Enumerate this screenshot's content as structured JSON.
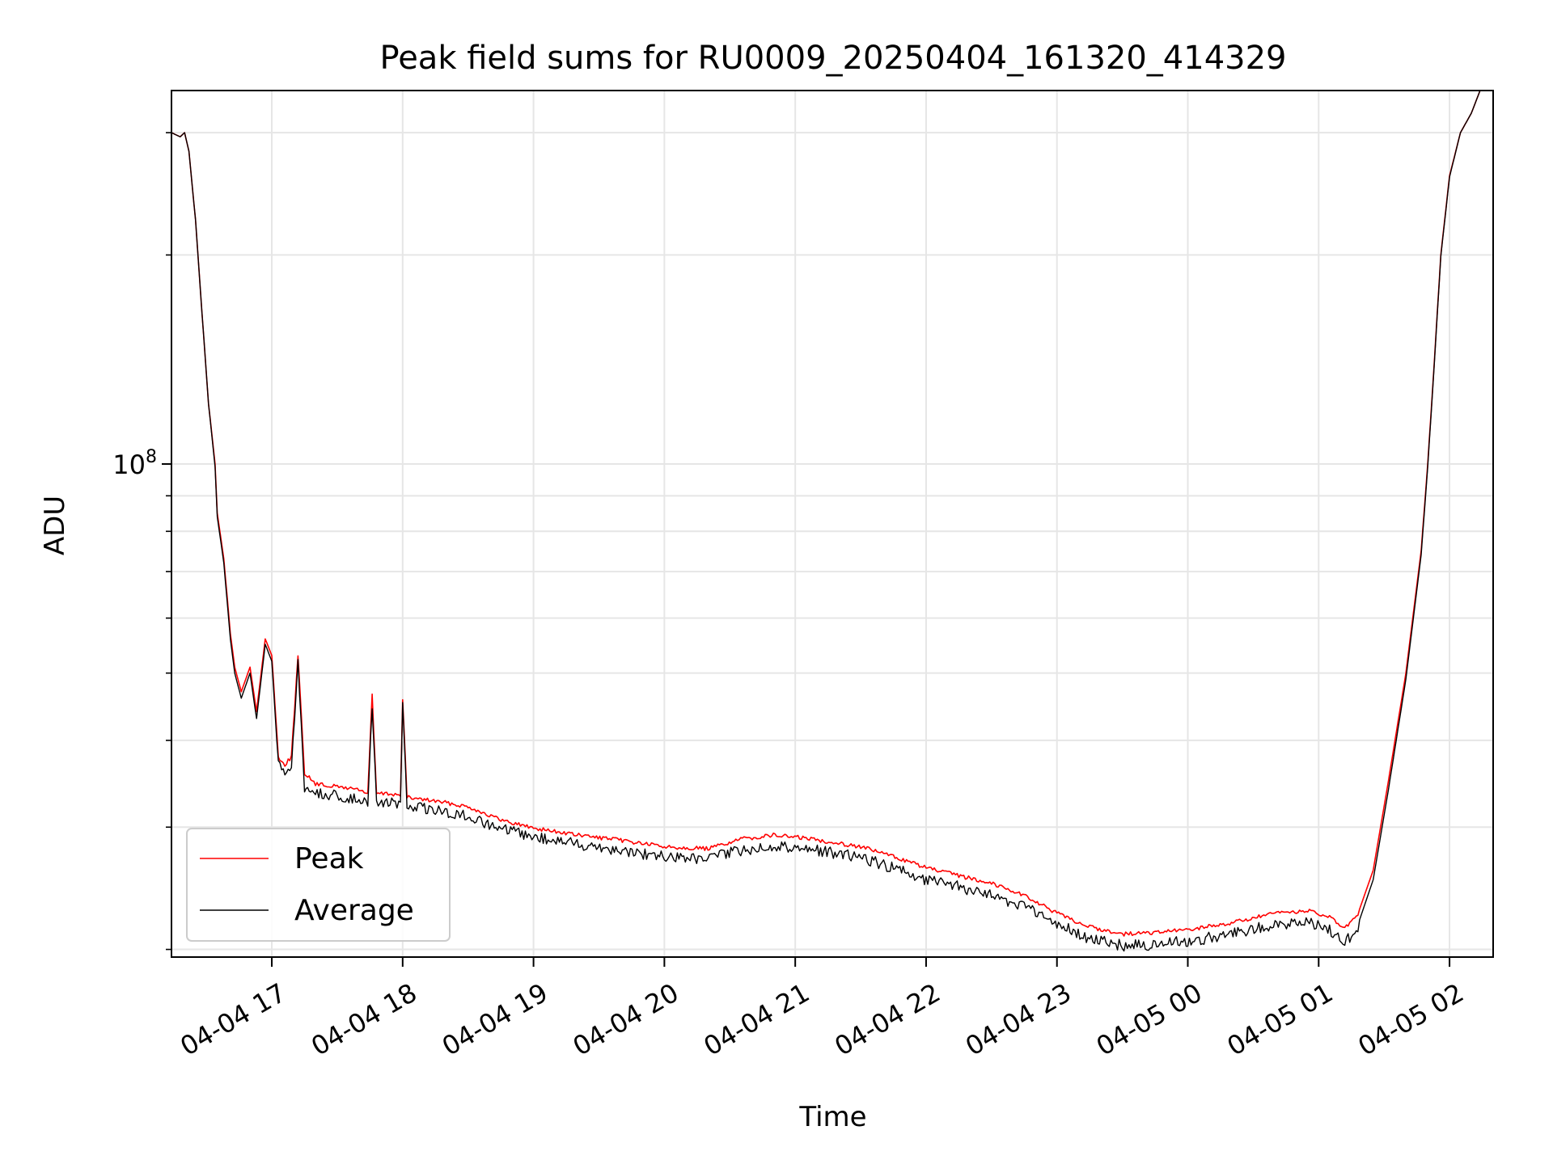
{
  "chart_data": {
    "type": "line",
    "title": "Peak field sums for RU0009_20250404_161320_414329",
    "xlabel": "Time",
    "ylabel": "ADU",
    "yscale": "log",
    "ylim": [
      19500000,
      345000000
    ],
    "xlim": [
      "2025-04-04 16:14",
      "2025-04-05 02:20"
    ],
    "x_ticks": [
      {
        "t": "2025-04-04 17:00",
        "label": "04-04 17"
      },
      {
        "t": "2025-04-04 18:00",
        "label": "04-04 18"
      },
      {
        "t": "2025-04-04 19:00",
        "label": "04-04 19"
      },
      {
        "t": "2025-04-04 20:00",
        "label": "04-04 20"
      },
      {
        "t": "2025-04-04 21:00",
        "label": "04-04 21"
      },
      {
        "t": "2025-04-04 22:00",
        "label": "04-04 22"
      },
      {
        "t": "2025-04-04 23:00",
        "label": "04-04 23"
      },
      {
        "t": "2025-04-05 00:00",
        "label": "04-05 00"
      },
      {
        "t": "2025-04-05 01:00",
        "label": "04-05 01"
      },
      {
        "t": "2025-04-05 02:00",
        "label": "04-05 02"
      }
    ],
    "y_ticks": [
      {
        "value": 100000000,
        "base": "10",
        "exp": "8"
      }
    ],
    "y_minor_ticks": [
      20000000,
      30000000,
      40000000,
      50000000,
      60000000,
      70000000,
      80000000,
      90000000,
      200000000,
      300000000
    ],
    "grid": true,
    "legend": {
      "position": "lower-left",
      "entries": [
        "Peak",
        "Average"
      ]
    },
    "series": [
      {
        "name": "Peak",
        "color": "#ff0000",
        "points": [
          [
            "2025-04-04 16:14",
            300000000
          ],
          [
            "2025-04-04 16:18",
            296000000
          ],
          [
            "2025-04-04 16:20",
            300000000
          ],
          [
            "2025-04-04 16:22",
            282000000
          ],
          [
            "2025-04-04 16:25",
            225000000
          ],
          [
            "2025-04-04 16:28",
            165000000
          ],
          [
            "2025-04-04 16:31",
            122000000
          ],
          [
            "2025-04-04 16:34",
            100000000
          ],
          [
            "2025-04-04 16:35",
            85000000
          ],
          [
            "2025-04-04 16:38",
            73000000
          ],
          [
            "2025-04-04 16:41",
            57000000
          ],
          [
            "2025-04-04 16:43",
            51000000
          ],
          [
            "2025-04-04 16:46",
            47000000
          ],
          [
            "2025-04-04 16:50",
            51000000
          ],
          [
            "2025-04-04 16:53",
            44000000
          ],
          [
            "2025-04-04 16:57",
            56000000
          ],
          [
            "2025-04-04 17:00",
            53000000
          ],
          [
            "2025-04-04 17:03",
            38000000
          ],
          [
            "2025-04-04 17:06",
            37000000
          ],
          [
            "2025-04-04 17:09",
            38000000
          ],
          [
            "2025-04-04 17:12",
            53000000
          ],
          [
            "2025-04-04 17:15",
            36000000
          ],
          [
            "2025-04-04 17:20",
            34700000
          ],
          [
            "2025-04-04 17:30",
            34400000
          ],
          [
            "2025-04-04 17:40",
            34100000
          ],
          [
            "2025-04-04 17:44",
            33600000
          ],
          [
            "2025-04-04 17:46",
            46500000
          ],
          [
            "2025-04-04 17:48",
            33600000
          ],
          [
            "2025-04-04 17:55",
            33600000
          ],
          [
            "2025-04-04 17:59",
            33400000
          ],
          [
            "2025-04-04 18:00",
            46000000
          ],
          [
            "2025-04-04 18:02",
            33200000
          ],
          [
            "2025-04-04 18:15",
            32800000
          ],
          [
            "2025-04-04 18:30",
            32200000
          ],
          [
            "2025-04-04 18:45",
            30800000
          ],
          [
            "2025-04-04 19:00",
            30000000
          ],
          [
            "2025-04-04 19:20",
            29300000
          ],
          [
            "2025-04-04 19:40",
            28800000
          ],
          [
            "2025-04-04 20:00",
            28200000
          ],
          [
            "2025-04-04 20:20",
            28000000
          ],
          [
            "2025-04-04 20:35",
            28900000
          ],
          [
            "2025-04-04 20:50",
            29300000
          ],
          [
            "2025-04-04 21:05",
            29000000
          ],
          [
            "2025-04-04 21:30",
            28200000
          ],
          [
            "2025-04-04 21:45",
            27300000
          ],
          [
            "2025-04-04 22:00",
            26300000
          ],
          [
            "2025-04-04 22:15",
            25600000
          ],
          [
            "2025-04-04 22:30",
            25000000
          ],
          [
            "2025-04-04 22:45",
            24000000
          ],
          [
            "2025-04-04 23:00",
            22600000
          ],
          [
            "2025-04-04 23:15",
            21600000
          ],
          [
            "2025-04-04 23:30",
            21100000
          ],
          [
            "2025-04-04 23:45",
            21200000
          ],
          [
            "2025-04-05 00:00",
            21400000
          ],
          [
            "2025-04-05 00:20",
            21900000
          ],
          [
            "2025-04-05 00:40",
            22600000
          ],
          [
            "2025-04-05 00:55",
            22800000
          ],
          [
            "2025-04-05 01:05",
            22300000
          ],
          [
            "2025-04-05 01:12",
            21500000
          ],
          [
            "2025-04-05 01:18",
            22500000
          ],
          [
            "2025-04-05 01:25",
            26000000
          ],
          [
            "2025-04-05 01:32",
            35000000
          ],
          [
            "2025-04-05 01:40",
            50000000
          ],
          [
            "2025-04-05 01:47",
            75000000
          ],
          [
            "2025-04-05 01:50",
            100000000
          ],
          [
            "2025-04-05 01:53",
            140000000
          ],
          [
            "2025-04-05 01:56",
            200000000
          ],
          [
            "2025-04-05 02:00",
            260000000
          ],
          [
            "2025-04-05 02:05",
            300000000
          ],
          [
            "2025-04-05 02:10",
            320000000
          ],
          [
            "2025-04-05 02:14",
            345000000
          ]
        ]
      },
      {
        "name": "Average",
        "color": "#000000",
        "points": [
          [
            "2025-04-04 16:14",
            300000000
          ],
          [
            "2025-04-04 16:18",
            296000000
          ],
          [
            "2025-04-04 16:20",
            300000000
          ],
          [
            "2025-04-04 16:22",
            282000000
          ],
          [
            "2025-04-04 16:25",
            225000000
          ],
          [
            "2025-04-04 16:28",
            165000000
          ],
          [
            "2025-04-04 16:31",
            122000000
          ],
          [
            "2025-04-04 16:34",
            99000000
          ],
          [
            "2025-04-04 16:35",
            84000000
          ],
          [
            "2025-04-04 16:38",
            72000000
          ],
          [
            "2025-04-04 16:41",
            56000000
          ],
          [
            "2025-04-04 16:43",
            50000000
          ],
          [
            "2025-04-04 16:46",
            46000000
          ],
          [
            "2025-04-04 16:50",
            50000000
          ],
          [
            "2025-04-04 16:53",
            43000000
          ],
          [
            "2025-04-04 16:57",
            55000000
          ],
          [
            "2025-04-04 17:00",
            52000000
          ],
          [
            "2025-04-04 17:03",
            37000000
          ],
          [
            "2025-04-04 17:06",
            36000000
          ],
          [
            "2025-04-04 17:09",
            37000000
          ],
          [
            "2025-04-04 17:12",
            52000000
          ],
          [
            "2025-04-04 17:15",
            34500000
          ],
          [
            "2025-04-04 17:20",
            33800000
          ],
          [
            "2025-04-04 17:30",
            33500000
          ],
          [
            "2025-04-04 17:40",
            33200000
          ],
          [
            "2025-04-04 17:44",
            32800000
          ],
          [
            "2025-04-04 17:46",
            45500000
          ],
          [
            "2025-04-04 17:48",
            32600000
          ],
          [
            "2025-04-04 17:55",
            32800000
          ],
          [
            "2025-04-04 17:59",
            32600000
          ],
          [
            "2025-04-04 18:00",
            45000000
          ],
          [
            "2025-04-04 18:02",
            32400000
          ],
          [
            "2025-04-04 18:15",
            32000000
          ],
          [
            "2025-04-04 18:30",
            31300000
          ],
          [
            "2025-04-04 18:45",
            30000000
          ],
          [
            "2025-04-04 19:00",
            29300000
          ],
          [
            "2025-04-04 19:20",
            28600000
          ],
          [
            "2025-04-04 19:40",
            28000000
          ],
          [
            "2025-04-04 20:00",
            27400000
          ],
          [
            "2025-04-04 20:20",
            27200000
          ],
          [
            "2025-04-04 20:35",
            28000000
          ],
          [
            "2025-04-04 20:50",
            28400000
          ],
          [
            "2025-04-04 21:05",
            28200000
          ],
          [
            "2025-04-04 21:30",
            27300000
          ],
          [
            "2025-04-04 21:45",
            26400000
          ],
          [
            "2025-04-04 22:00",
            25400000
          ],
          [
            "2025-04-04 22:15",
            24800000
          ],
          [
            "2025-04-04 22:30",
            24100000
          ],
          [
            "2025-04-04 22:45",
            23200000
          ],
          [
            "2025-04-04 23:00",
            21900000
          ],
          [
            "2025-04-04 23:15",
            20900000
          ],
          [
            "2025-04-04 23:30",
            20400000
          ],
          [
            "2025-04-04 23:45",
            20500000
          ],
          [
            "2025-04-05 00:00",
            20700000
          ],
          [
            "2025-04-05 00:20",
            21200000
          ],
          [
            "2025-04-05 00:40",
            21900000
          ],
          [
            "2025-04-05 00:55",
            22000000
          ],
          [
            "2025-04-05 01:05",
            21500000
          ],
          [
            "2025-04-05 01:12",
            20600000
          ],
          [
            "2025-04-05 01:18",
            21700000
          ],
          [
            "2025-04-05 01:25",
            25200000
          ],
          [
            "2025-04-05 01:32",
            34000000
          ],
          [
            "2025-04-05 01:40",
            49000000
          ],
          [
            "2025-04-05 01:47",
            74000000
          ],
          [
            "2025-04-05 01:50",
            99000000
          ],
          [
            "2025-04-05 01:53",
            139000000
          ],
          [
            "2025-04-05 01:56",
            199000000
          ],
          [
            "2025-04-05 02:00",
            259000000
          ],
          [
            "2025-04-05 02:05",
            300000000
          ],
          [
            "2025-04-05 02:10",
            320000000
          ],
          [
            "2025-04-05 02:14",
            345000000
          ]
        ]
      }
    ]
  }
}
